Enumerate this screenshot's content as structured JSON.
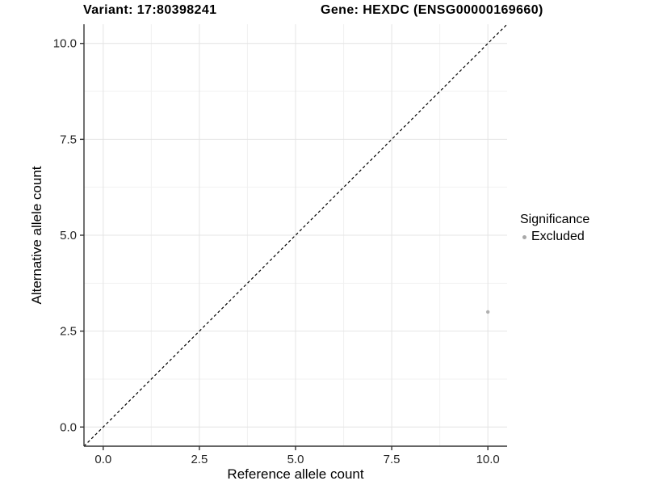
{
  "header": {
    "variant_title": "Variant: 17:80398241",
    "gene_title": "Gene: HEXDC (ENSG00000169660)"
  },
  "chart_data": {
    "type": "scatter",
    "xlabel": "Reference allele count",
    "ylabel": "Alternative allele count",
    "xlim": [
      -0.5,
      10.5
    ],
    "ylim": [
      -0.5,
      10.5
    ],
    "xticks": [
      0.0,
      2.5,
      5.0,
      7.5,
      10.0
    ],
    "yticks": [
      0.0,
      2.5,
      5.0,
      7.5,
      10.0
    ],
    "xtick_labels": [
      "0.0",
      "2.5",
      "5.0",
      "7.5",
      "10.0"
    ],
    "ytick_labels": [
      "0.0",
      "2.5",
      "5.0",
      "7.5",
      "10.0"
    ],
    "minor_ticks": [
      1.25,
      3.75,
      6.25,
      8.75
    ],
    "grid": {
      "major_color": "#e4e4e4",
      "minor_color": "#f1f1f1",
      "on": true
    },
    "axis_color": "#333333",
    "tick_label_color": "#262626",
    "identity_line": {
      "type": "dashed",
      "color": "#000000",
      "x1": -0.5,
      "y1": -0.5,
      "x2": 10.5,
      "y2": 10.5
    },
    "series": [
      {
        "name": "Excluded",
        "color": "#b0b0b0",
        "points": [
          {
            "x": 10,
            "y": 3
          }
        ]
      }
    ],
    "legend": {
      "title": "Significance",
      "position": "right",
      "items": [
        {
          "label": "Excluded",
          "color": "#a8a8a8"
        }
      ]
    }
  }
}
